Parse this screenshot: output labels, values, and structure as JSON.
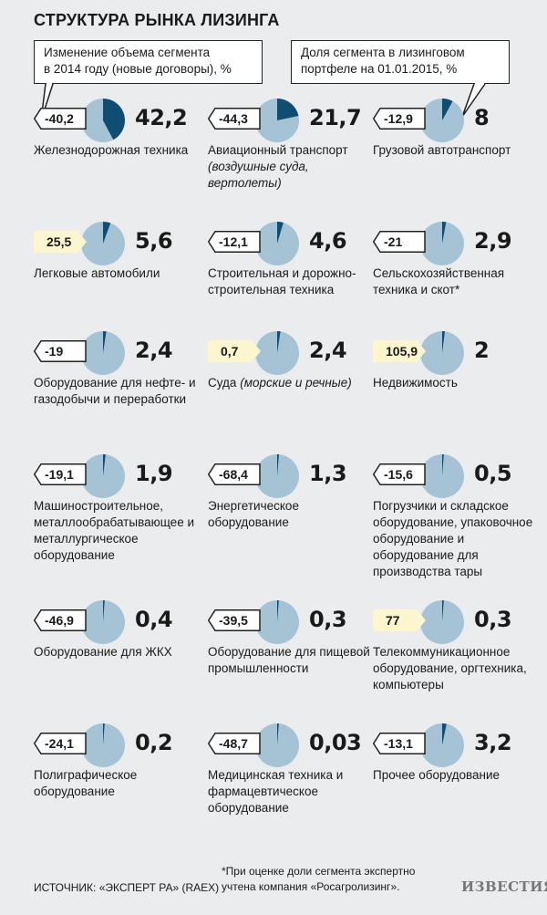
{
  "title": "СТРУКТУРА РЫНКА ЛИЗИНГА",
  "callouts": {
    "left": [
      "Изменение объема сегмента",
      "в 2014 году (новые договоры), %"
    ],
    "right": [
      "Доля сегмента в лизинговом",
      "портфеле на 01.01.2015, %"
    ]
  },
  "colors": {
    "pie_bg": "#a6c3d6",
    "pie_slice": "#0f4d73",
    "negative_badge": "#ffffff",
    "positive_badge": "#fbf6cd"
  },
  "chart_data": {
    "type": "pie",
    "series": [
      {
        "name": "Изменение объема сегмента в 2014 году (новые договоры), %"
      },
      {
        "name": "Доля сегмента в лизинговом портфеле на 01.01.2015, %"
      }
    ],
    "segments": [
      {
        "label": "Железнодорожная техника",
        "note": "",
        "change": "-40,2",
        "share": "42,2",
        "change_value": -40.2,
        "share_value": 42.2
      },
      {
        "label": "Авиационный транспорт",
        "note": "(воздушные суда, вертолеты)",
        "change": "-44,3",
        "share": "21,7",
        "change_value": -44.3,
        "share_value": 21.7
      },
      {
        "label": "Грузовой автотранспорт",
        "note": "",
        "change": "-12,9",
        "share": "8",
        "change_value": -12.9,
        "share_value": 8
      },
      {
        "label": "Легковые автомобили",
        "note": "",
        "change": "25,5",
        "share": "5,6",
        "change_value": 25.5,
        "share_value": 5.6
      },
      {
        "label": "Строительная и дорожно-строительная техника",
        "note": "",
        "change": "-12,1",
        "share": "4,6",
        "change_value": -12.1,
        "share_value": 4.6
      },
      {
        "label": "Сельскохозяйственная техника и скот*",
        "note": "",
        "change": "-21",
        "share": "2,9",
        "change_value": -21,
        "share_value": 2.9
      },
      {
        "label": "Оборудование для нефте- и газодобычи и переработки",
        "note": "",
        "change": "-19",
        "share": "2,4",
        "change_value": -19,
        "share_value": 2.4
      },
      {
        "label": "Суда",
        "note": "(морские и речные)",
        "change": "0,7",
        "share": "2,4",
        "change_value": 0.7,
        "share_value": 2.4
      },
      {
        "label": "Недвижимость",
        "note": "",
        "change": "105,9",
        "share": "2",
        "change_value": 105.9,
        "share_value": 2
      },
      {
        "label": "Машиностроительное, металлообрабатывающее и металлургическое оборудование",
        "note": "",
        "change": "-19,1",
        "share": "1,9",
        "change_value": -19.1,
        "share_value": 1.9
      },
      {
        "label": "Энергетическое оборудование",
        "note": "",
        "change": "-68,4",
        "share": "1,3",
        "change_value": -68.4,
        "share_value": 1.3
      },
      {
        "label": "Погрузчики и складское оборудование, упаковочное оборудование и оборудование для производства тары",
        "note": "",
        "change": "-15,6",
        "share": "0,5",
        "change_value": -15.6,
        "share_value": 0.5
      },
      {
        "label": "Оборудование для ЖКХ",
        "note": "",
        "change": "-46,9",
        "share": "0,4",
        "change_value": -46.9,
        "share_value": 0.4
      },
      {
        "label": "Оборудование для пищевой промышленности",
        "note": "",
        "change": "-39,5",
        "share": "0,3",
        "change_value": -39.5,
        "share_value": 0.3
      },
      {
        "label": "Телекоммуникационное оборудование, оргтехника, компьютеры",
        "note": "",
        "change": "77",
        "share": "0,3",
        "change_value": 77,
        "share_value": 0.3
      },
      {
        "label": "Полиграфическое оборудование",
        "note": "",
        "change": "-24,1",
        "share": "0,2",
        "change_value": -24.1,
        "share_value": 0.2
      },
      {
        "label": "Медицинская техника и фармацевтическое оборудование",
        "note": "",
        "change": "-48,7",
        "share": "0,03",
        "change_value": -48.7,
        "share_value": 0.03
      },
      {
        "label": "Прочее оборудование",
        "note": "",
        "change": "-13,1",
        "share": "3,2",
        "change_value": -13.1,
        "share_value": 3.2
      }
    ]
  },
  "footnote": [
    "*При оценке доли сегмента экспертно",
    "учтена компания «Росагролизинг»."
  ],
  "source": "ИСТОЧНИК: «ЭКСПЕРТ РА» (RAEX)",
  "logo": "ИЗВЕСТИЯ"
}
